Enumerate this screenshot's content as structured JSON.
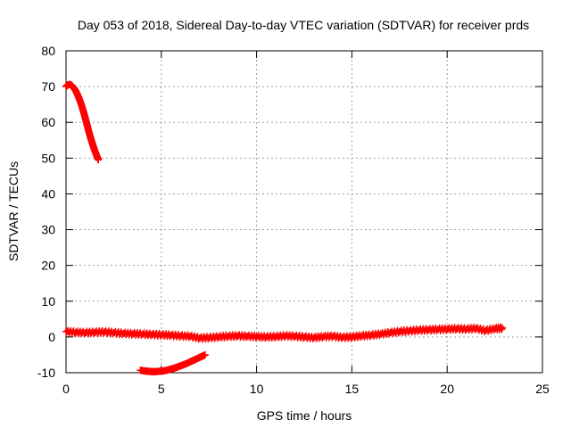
{
  "chart_data": {
    "type": "scatter",
    "title": "Day 053 of 2018, Sidereal Day-to-day VTEC variation (SDTVAR) for receiver prds",
    "xlabel": "GPS time / hours",
    "ylabel": "SDTVAR / TECUs",
    "xlim": [
      0,
      25
    ],
    "ylim": [
      -10,
      80
    ],
    "xticks": [
      0,
      5,
      10,
      15,
      20,
      25
    ],
    "yticks": [
      -10,
      0,
      10,
      20,
      30,
      40,
      50,
      60,
      70,
      80
    ],
    "grid": true,
    "marker": "plus",
    "series_color": "#ff0000",
    "series": [
      {
        "name": "segment-1",
        "x": [
          0.0,
          0.1,
          0.2,
          0.3,
          0.4,
          0.5,
          0.6,
          0.7,
          0.8,
          0.9,
          1.0,
          1.1,
          1.2,
          1.3,
          1.4,
          1.5,
          1.6,
          1.7
        ],
        "y": [
          70.0,
          70.5,
          70.6,
          70.3,
          69.7,
          68.9,
          67.8,
          66.5,
          65.0,
          63.3,
          61.4,
          59.4,
          57.3,
          55.5,
          53.8,
          52.2,
          50.8,
          49.5
        ]
      },
      {
        "name": "segment-2",
        "x": [
          0.0,
          0.5,
          1.0,
          1.5,
          2.0,
          2.5,
          3.0,
          3.5,
          4.0,
          4.5,
          5.0,
          5.5,
          6.0,
          6.5,
          7.0,
          7.5,
          8.0,
          8.5,
          9.0,
          9.5,
          10.0,
          10.5,
          11.0,
          11.5,
          12.0,
          12.5,
          13.0,
          13.5,
          14.0,
          14.5,
          15.0,
          15.5,
          16.0,
          16.5,
          17.0,
          17.5,
          18.0,
          18.5,
          19.0,
          19.5,
          20.0,
          20.5,
          21.0,
          21.5,
          22.0,
          22.5,
          22.9
        ],
        "y": [
          1.5,
          1.3,
          1.2,
          1.3,
          1.4,
          1.2,
          1.0,
          0.9,
          0.8,
          0.7,
          0.6,
          0.5,
          0.3,
          0.2,
          -0.3,
          -0.2,
          0.0,
          0.2,
          0.3,
          0.2,
          0.1,
          0.0,
          0.1,
          0.3,
          0.2,
          0.0,
          -0.2,
          0.1,
          0.2,
          -0.1,
          0.0,
          0.3,
          0.5,
          0.8,
          1.2,
          1.5,
          1.7,
          1.9,
          2.0,
          2.1,
          2.2,
          2.3,
          2.2,
          2.4,
          1.8,
          2.3,
          2.5
        ]
      },
      {
        "name": "segment-3",
        "x": [
          3.9,
          4.1,
          4.3,
          4.5,
          4.7,
          4.9,
          5.1,
          5.3,
          5.5,
          5.7,
          5.9,
          6.1,
          6.3,
          6.5,
          6.7,
          6.9,
          7.1,
          7.3
        ],
        "y": [
          -9.3,
          -9.5,
          -9.6,
          -9.7,
          -9.7,
          -9.6,
          -9.5,
          -9.3,
          -9.0,
          -8.7,
          -8.3,
          -7.9,
          -7.5,
          -7.0,
          -6.5,
          -6.0,
          -5.5,
          -5.0
        ]
      }
    ]
  }
}
